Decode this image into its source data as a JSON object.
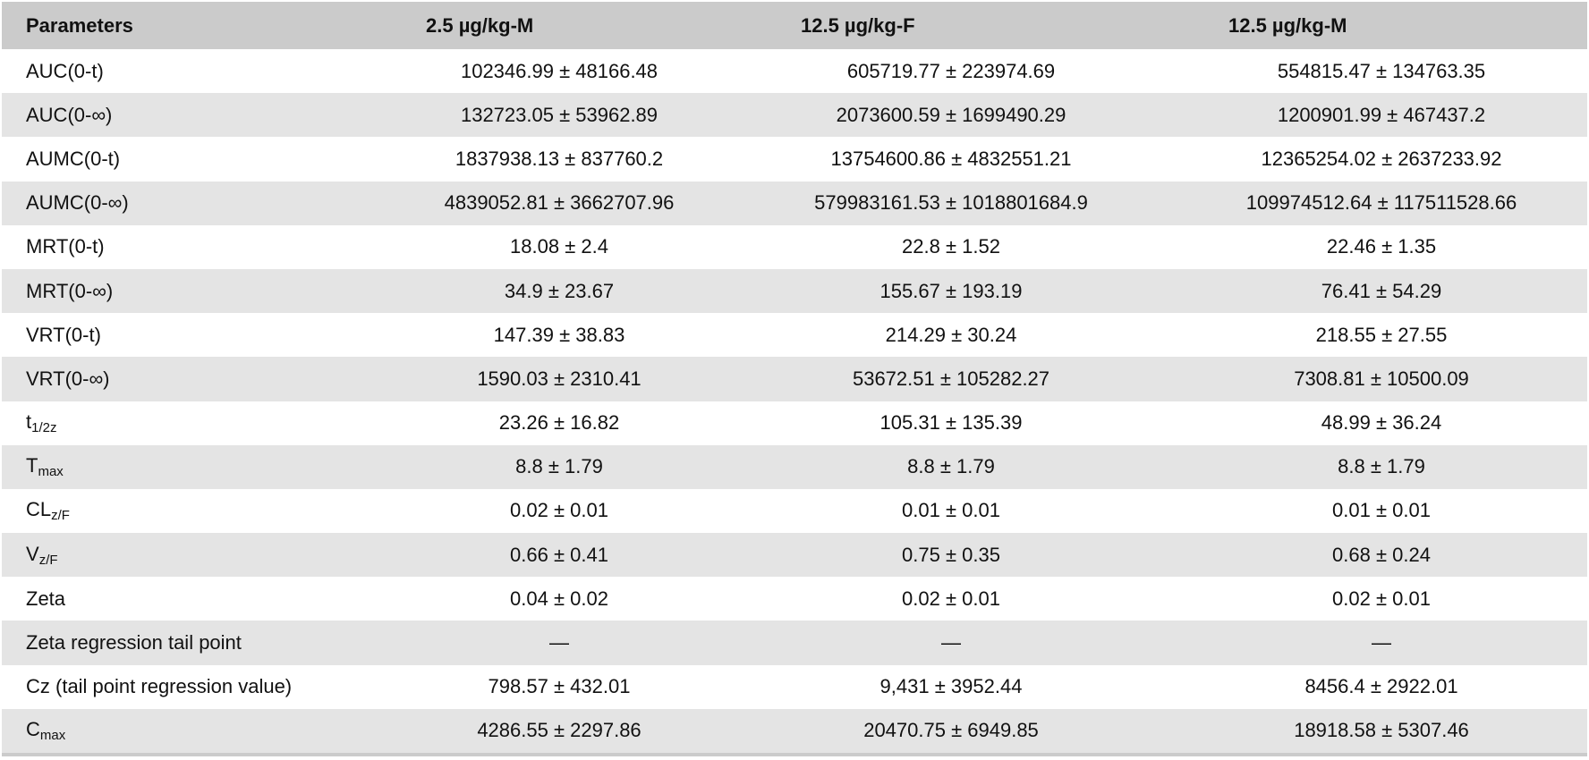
{
  "headers": [
    "Parameters",
    "2.5 µg/kg-M",
    "12.5 µg/kg-F",
    "12.5 µg/kg-M"
  ],
  "rows": [
    {
      "param": "AUC(0-t)",
      "sub": "",
      "v": [
        "102346.99 ± 48166.48",
        "605719.77 ± 223974.69",
        "554815.47 ± 134763.35"
      ]
    },
    {
      "param": "AUC(0-∞)",
      "sub": "",
      "v": [
        "132723.05 ± 53962.89",
        "2073600.59 ± 1699490.29",
        "1200901.99 ± 467437.2"
      ]
    },
    {
      "param": "AUMC(0-t)",
      "sub": "",
      "v": [
        "1837938.13 ± 837760.2",
        "13754600.86 ± 4832551.21",
        "12365254.02 ± 2637233.92"
      ]
    },
    {
      "param": "AUMC(0-∞)",
      "sub": "",
      "v": [
        "4839052.81 ± 3662707.96",
        "579983161.53 ± 1018801684.9",
        "109974512.64 ± 117511528.66"
      ]
    },
    {
      "param": "MRT(0-t)",
      "sub": "",
      "v": [
        "18.08 ± 2.4",
        "22.8 ± 1.52",
        "22.46 ± 1.35"
      ]
    },
    {
      "param": "MRT(0-∞)",
      "sub": "",
      "v": [
        "34.9 ± 23.67",
        "155.67 ± 193.19",
        "76.41 ± 54.29"
      ]
    },
    {
      "param": "VRT(0-t)",
      "sub": "",
      "v": [
        "147.39 ± 38.83",
        "214.29 ± 30.24",
        "218.55 ± 27.55"
      ]
    },
    {
      "param": "VRT(0-∞)",
      "sub": "",
      "v": [
        "1590.03 ± 2310.41",
        "53672.51 ± 105282.27",
        "7308.81 ± 10500.09"
      ]
    },
    {
      "param": "t",
      "sub": "1/2z",
      "v": [
        "23.26 ± 16.82",
        "105.31 ± 135.39",
        "48.99 ± 36.24"
      ]
    },
    {
      "param": "T",
      "sub": "max",
      "v": [
        "8.8 ± 1.79",
        "8.8 ± 1.79",
        "8.8 ± 1.79"
      ]
    },
    {
      "param": "CL",
      "sub": "z/F",
      "v": [
        "0.02 ± 0.01",
        "0.01 ± 0.01",
        "0.01 ± 0.01"
      ]
    },
    {
      "param": "V",
      "sub": "z/F",
      "v": [
        "0.66 ± 0.41",
        "0.75 ± 0.35",
        "0.68 ± 0.24"
      ]
    },
    {
      "param": "Zeta",
      "sub": "",
      "v": [
        "0.04 ± 0.02",
        "0.02 ± 0.01",
        "0.02 ± 0.01"
      ]
    },
    {
      "param": "Zeta regression tail point",
      "sub": "",
      "v": [
        "—",
        "—",
        "—"
      ]
    },
    {
      "param": "Cz (tail point regression value)",
      "sub": "",
      "v": [
        "798.57 ± 432.01",
        "9,431 ± 3952.44",
        "8456.4 ± 2922.01"
      ]
    },
    {
      "param": "C",
      "sub": "max",
      "v": [
        "4286.55 ± 2297.86",
        "20470.75 ± 6949.85",
        "18918.58 ± 5307.46"
      ]
    }
  ]
}
